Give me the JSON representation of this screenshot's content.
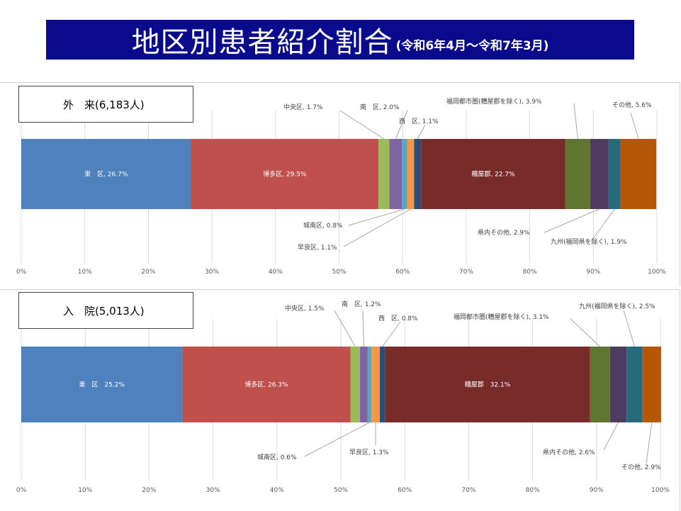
{
  "title": {
    "main": "地区別患者紹介割合",
    "sub": "(令和6年4月～令和7年3月)"
  },
  "colors": {
    "東区": "#4f81bd",
    "博多区": "#c0504d",
    "中央区": "#9bbb59",
    "南区": "#8064a2",
    "城南区": "#4bacc6",
    "早良区": "#f79646",
    "西区": "#2c4d75",
    "糟屋郡": "#772c2a",
    "福岡都市圏": "#5f7530",
    "県内その他": "#4d3b62",
    "九州": "#276a7c",
    "その他": "#b65708"
  },
  "chart_data": [
    {
      "type": "bar",
      "orientation": "horizontal-stacked",
      "panel_label": "外　来(6,183人)",
      "xlim": [
        0,
        100
      ],
      "ticks": [
        "0%",
        "10%",
        "20%",
        "30%",
        "40%",
        "50%",
        "60%",
        "70%",
        "80%",
        "90%",
        "100%"
      ],
      "grid": true,
      "segments": [
        {
          "key": "東区",
          "value": 26.7,
          "label": "東　区, 26.7%"
        },
        {
          "key": "博多区",
          "value": 29.5,
          "label": "博多区, 29.5%"
        },
        {
          "key": "中央区",
          "value": 1.7,
          "label": "中央区, 1.7%"
        },
        {
          "key": "南区",
          "value": 2.0,
          "label": "南　区, 2.0%"
        },
        {
          "key": "城南区",
          "value": 0.8,
          "label": "城南区, 0.8%"
        },
        {
          "key": "早良区",
          "value": 1.1,
          "label": "早良区, 1.1%"
        },
        {
          "key": "西区",
          "value": 1.1,
          "label": "西　区, 1.1%"
        },
        {
          "key": "糟屋郡",
          "value": 22.7,
          "label": "糟屋郡, 22.7%"
        },
        {
          "key": "福岡都市圏",
          "value": 3.9,
          "label": "福岡都市圏(糟屋郡を除く), 3.9%"
        },
        {
          "key": "県内その他",
          "value": 2.9,
          "label": "県内その他, 2.9%"
        },
        {
          "key": "九州",
          "value": 1.9,
          "label": "九州(福岡県を除く), 1.9%"
        },
        {
          "key": "その他",
          "value": 5.6,
          "label": "その他, 5.6%"
        }
      ]
    },
    {
      "type": "bar",
      "orientation": "horizontal-stacked",
      "panel_label": "入　院(5,013人)",
      "xlim": [
        0,
        100
      ],
      "ticks": [
        "0%",
        "10%",
        "20%",
        "30%",
        "40%",
        "50%",
        "60%",
        "70%",
        "80%",
        "90%",
        "100%"
      ],
      "grid": true,
      "segments": [
        {
          "key": "東区",
          "value": 25.2,
          "label": "東　区　25.2%"
        },
        {
          "key": "博多区",
          "value": 26.3,
          "label": "博多区, 26.3%"
        },
        {
          "key": "中央区",
          "value": 1.5,
          "label": "中央区, 1.5%"
        },
        {
          "key": "南区",
          "value": 1.2,
          "label": "南　区, 1.2%"
        },
        {
          "key": "城南区",
          "value": 0.6,
          "label": "城南区, 0.6%"
        },
        {
          "key": "早良区",
          "value": 1.3,
          "label": "早良区, 1.3%"
        },
        {
          "key": "西区",
          "value": 0.8,
          "label": "西　区, 0.8%"
        },
        {
          "key": "糟屋郡",
          "value": 32.1,
          "label": "糟屋郡　32.1%"
        },
        {
          "key": "福岡都市圏",
          "value": 3.1,
          "label": "福岡都市圏(糟屋郡を除く), 3.1%"
        },
        {
          "key": "県内その他",
          "value": 2.6,
          "label": "県内その他, 2.6%"
        },
        {
          "key": "九州",
          "value": 2.5,
          "label": "九州(福岡県を除く), 2.5%"
        },
        {
          "key": "その他",
          "value": 2.9,
          "label": "その他, 2.9%"
        }
      ]
    }
  ]
}
